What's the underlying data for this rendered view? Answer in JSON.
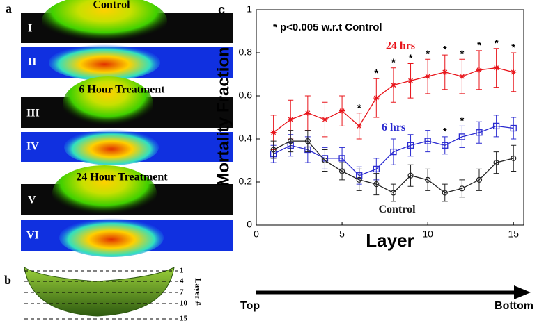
{
  "chart_data": {
    "type": "line",
    "panel_label": "c",
    "note": "* p<0.005 w.r.t Control",
    "xlabel": "Layer",
    "ylabel": "Mortality Fraction",
    "x": [
      1,
      2,
      3,
      4,
      5,
      6,
      7,
      8,
      9,
      10,
      11,
      12,
      13,
      14,
      15
    ],
    "xlim": [
      0,
      15.6
    ],
    "ylim": [
      0,
      1
    ],
    "xticks": [
      0,
      5,
      10,
      15
    ],
    "yticks": [
      0,
      0.2,
      0.4,
      0.6,
      0.8,
      1
    ],
    "series": [
      {
        "name": "24 hrs",
        "color": "#e8141a",
        "marker": "star",
        "values": [
          0.43,
          0.49,
          0.52,
          0.49,
          0.53,
          0.46,
          0.59,
          0.65,
          0.67,
          0.69,
          0.71,
          0.69,
          0.72,
          0.73,
          0.71
        ],
        "errors": [
          0.08,
          0.09,
          0.08,
          0.08,
          0.07,
          0.06,
          0.09,
          0.08,
          0.08,
          0.08,
          0.08,
          0.08,
          0.09,
          0.09,
          0.09
        ],
        "sig_labels": [
          null,
          null,
          null,
          null,
          null,
          "*",
          "*",
          "*",
          "*",
          "*",
          "*",
          "*",
          "*",
          "*",
          "*"
        ]
      },
      {
        "name": "6 hrs",
        "color": "#2a2ad0",
        "marker": "square",
        "values": [
          0.33,
          0.37,
          0.35,
          0.31,
          0.31,
          0.23,
          0.26,
          0.34,
          0.37,
          0.39,
          0.37,
          0.41,
          0.43,
          0.46,
          0.45
        ],
        "errors": [
          0.04,
          0.05,
          0.06,
          0.05,
          0.05,
          0.04,
          0.05,
          0.06,
          0.05,
          0.05,
          0.04,
          0.05,
          0.05,
          0.05,
          0.05
        ],
        "sig_labels": [
          null,
          null,
          null,
          null,
          null,
          null,
          null,
          null,
          null,
          null,
          "*",
          "*",
          null,
          null,
          null
        ]
      },
      {
        "name": "Control",
        "color": "#222222",
        "marker": "circle",
        "values": [
          0.35,
          0.39,
          0.39,
          0.3,
          0.25,
          0.21,
          0.19,
          0.15,
          0.23,
          0.21,
          0.15,
          0.17,
          0.21,
          0.29,
          0.31
        ],
        "errors": [
          0.04,
          0.05,
          0.05,
          0.05,
          0.04,
          0.05,
          0.05,
          0.04,
          0.05,
          0.05,
          0.04,
          0.04,
          0.05,
          0.05,
          0.06
        ]
      }
    ]
  },
  "panel_a": {
    "label": "a",
    "titles": [
      "Control",
      "6 Hour Treatment",
      "24 Hour Treatment"
    ],
    "strips": [
      "I",
      "II",
      "III",
      "IV",
      "V",
      "VI"
    ]
  },
  "panel_b": {
    "label": "b",
    "layers": [
      1,
      4,
      7,
      10,
      15
    ],
    "axis_label": "Layer #"
  },
  "arrow": {
    "start": "Top",
    "end": "Bottom"
  }
}
